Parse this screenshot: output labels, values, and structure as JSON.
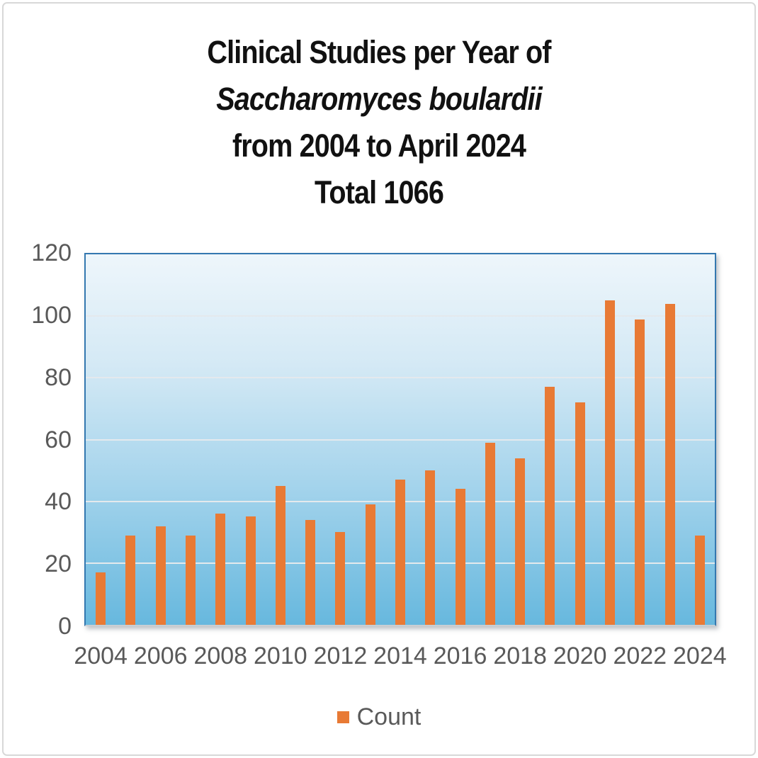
{
  "title": {
    "line1": "Clinical Studies per Year of",
    "line2": "Saccharomyces boulardii",
    "line3": "from 2004 to April 2024",
    "line4": "Total 1066"
  },
  "legend": {
    "label": "Count"
  },
  "colors": {
    "bar": "#e87a35",
    "plot_border": "#3478b0",
    "plot_bg_top": "#eef6fb",
    "plot_bg_bottom": "#67b8de",
    "axis_text": "#595959",
    "gridline": "#e4e9ed",
    "title_text": "#111111",
    "page_border": "#d8d8d8"
  },
  "chart_data": {
    "type": "bar",
    "title": "Clinical Studies per Year of Saccharomyces boulardii from 2004 to April 2024 Total 1066",
    "categories": [
      2004,
      2005,
      2006,
      2007,
      2008,
      2009,
      2010,
      2011,
      2012,
      2013,
      2014,
      2015,
      2016,
      2017,
      2018,
      2019,
      2020,
      2021,
      2022,
      2023,
      2024
    ],
    "values": [
      17,
      29,
      32,
      29,
      36,
      35,
      45,
      34,
      30,
      39,
      47,
      50,
      44,
      59,
      54,
      77,
      72,
      105,
      99,
      104,
      29
    ],
    "total": 1066,
    "series_name": "Count",
    "xlabel": "",
    "ylabel": "",
    "ylim": [
      0,
      120
    ],
    "yticks": [
      0,
      20,
      40,
      60,
      80,
      100,
      120
    ],
    "xtick_labels_shown": [
      "2004",
      "2006",
      "2008",
      "2010",
      "2012",
      "2014",
      "2016",
      "2018",
      "2020",
      "2022",
      "2024"
    ],
    "grid": true,
    "legend_entries": [
      "Count"
    ],
    "legend_position": "bottom",
    "bar_color": "#e87a35",
    "plot_bg_gradient": [
      "#eef6fb",
      "#67b8de"
    ]
  }
}
